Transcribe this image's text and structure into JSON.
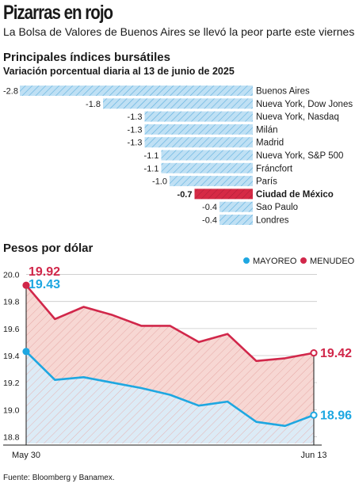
{
  "header": {
    "title": "Pizarras en rojo",
    "deck": "La Bolsa de Valores de Buenos Aires se llevó la peor parte este viernes.",
    "source": "Fuente: Bloomberg y Banamex."
  },
  "colors": {
    "bar": "#bfe0f4",
    "bar_hatch": "#5aaede",
    "bar_highlight": "#d62a45",
    "mayoreo": "#1ea7e1",
    "menudeo": "#d1274a",
    "menudeo_fill": "#f7d7d3",
    "mayoreo_fill": "#dcebf6"
  },
  "chart_data": [
    {
      "type": "bar",
      "orientation": "horizontal",
      "title": "Principales índices bursátiles",
      "subtitle": "Variación porcentual diaria al 13 de junio de 2025",
      "categories": [
        "Buenos Aires",
        "Nueva York, Dow Jones",
        "Nueva York, Nasdaq",
        "Milán",
        "Madrid",
        "Nueva York, S&P 500",
        "Fráncfort",
        "París",
        "Ciudad de México",
        "Sao Paulo",
        "Londres"
      ],
      "values": [
        -2.8,
        -1.8,
        -1.3,
        -1.3,
        -1.3,
        -1.1,
        -1.1,
        -1.0,
        -0.7,
        -0.4,
        -0.4
      ],
      "value_labels": [
        "-2.8",
        "-1.8",
        "-1.3",
        "-1.3",
        "-1.3",
        "-1.1",
        "-1.1",
        "-1.0",
        "-0.7",
        "-0.4",
        "-0.4"
      ],
      "highlight": "Ciudad de México"
    },
    {
      "type": "line",
      "title": "Pesos por dólar",
      "x_labels": [
        "May 30",
        "Jun 13"
      ],
      "ylim": [
        18.75,
        20.05
      ],
      "y_ticks": [
        18.8,
        19.0,
        19.2,
        19.4,
        19.6,
        19.8,
        20.0
      ],
      "y_tick_labels": [
        "18.8",
        "19.0",
        "19.2",
        "19.4",
        "19.6",
        "19.8",
        "20.0"
      ],
      "legend_position": "top-right",
      "grid": true,
      "series": [
        {
          "name": "MAYOREO",
          "values": [
            19.43,
            19.22,
            19.24,
            19.2,
            19.16,
            19.11,
            19.03,
            19.06,
            18.91,
            18.88,
            18.96
          ],
          "start_label": "19.43",
          "end_label": "18.96"
        },
        {
          "name": "MENUDEO",
          "values": [
            19.92,
            19.67,
            19.76,
            19.7,
            19.62,
            19.62,
            19.5,
            19.56,
            19.36,
            19.38,
            19.42
          ],
          "start_label": "19.92",
          "end_label": "19.42"
        }
      ]
    }
  ]
}
